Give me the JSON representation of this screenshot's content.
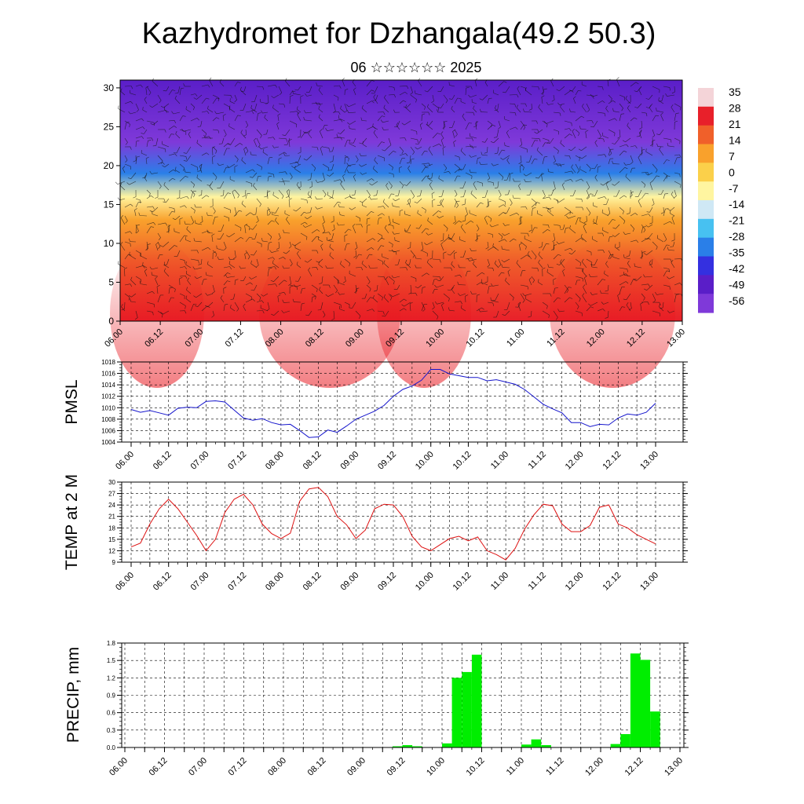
{
  "header": {
    "title": "Kazhydromet for Dzhangala(49.2 50.3)",
    "subtitle": "06 ☆☆☆☆☆☆ 2025"
  },
  "chart_data": [
    {
      "type": "heatmap",
      "name": "vertical temperature and wind cross-section",
      "x_ticks": [
        "06.00",
        "06.12",
        "07.00",
        "07.12",
        "08.00",
        "08.12",
        "09.00",
        "09.12",
        "10.00",
        "10.12",
        "11.00",
        "11.12",
        "12.00",
        "12.12",
        "13.00"
      ],
      "y_ticks": [
        "0",
        "5",
        "10",
        "15",
        "20",
        "25",
        "30"
      ],
      "ylim": [
        0,
        31
      ],
      "colorbar_labels": [
        "35",
        "28",
        "21",
        "14",
        "7",
        "0",
        "-7",
        "-14",
        "-21",
        "-28",
        "-35",
        "-42",
        "-49",
        "-56"
      ],
      "colorbar_colors": [
        "#f4d4d8",
        "#e8202a",
        "#f0602a",
        "#f9a12c",
        "#fbd04a",
        "#fff5a0",
        "#cfe8f5",
        "#47c1f1",
        "#2a7fe8",
        "#3430e0",
        "#5a1ec8",
        "#7f39d9"
      ],
      "field_bands": [
        {
          "height": 0,
          "value": 28
        },
        {
          "height": 8,
          "value": 20
        },
        {
          "height": 13,
          "value": 7
        },
        {
          "height": 16,
          "value": -10
        },
        {
          "height": 19,
          "value": -35
        },
        {
          "height": 23,
          "value": -56
        },
        {
          "height": 31,
          "value": -49
        }
      ]
    },
    {
      "type": "line",
      "ylabel": "PMSL",
      "ylim": [
        1004,
        1018
      ],
      "y_ticks": [
        "1004",
        "1006",
        "1008",
        "1010",
        "1012",
        "1014",
        "1016",
        "1018"
      ],
      "x_ticks": [
        "06.00",
        "06.12",
        "07.00",
        "07.12",
        "08.00",
        "08.12",
        "09.00",
        "09.12",
        "10.00",
        "10.12",
        "11.00",
        "11.12",
        "12.00",
        "12.12",
        "13.00"
      ],
      "x_hours": [
        0,
        3,
        6,
        9,
        12,
        15,
        18,
        21,
        24,
        27,
        30,
        33,
        36,
        39,
        42,
        45,
        48,
        51,
        54,
        57,
        60,
        63,
        66,
        69,
        72,
        75,
        78,
        81,
        84,
        87,
        90,
        93,
        96,
        99,
        102,
        105,
        108,
        111,
        114,
        117,
        120,
        123,
        126,
        129,
        132,
        135,
        138,
        141,
        144,
        147,
        150,
        153,
        156,
        159,
        162,
        165,
        168
      ],
      "values": [
        1009.7,
        1009.2,
        1009.5,
        1009.1,
        1008.7,
        1009.9,
        1010.1,
        1010.0,
        1011.1,
        1011.2,
        1011.0,
        1009.6,
        1008.2,
        1007.8,
        1008.1,
        1007.4,
        1007.0,
        1007.1,
        1006.0,
        1004.8,
        1004.9,
        1006.1,
        1005.7,
        1006.8,
        1008.0,
        1008.7,
        1009.4,
        1010.4,
        1012.0,
        1013.2,
        1013.8,
        1014.8,
        1016.7,
        1016.7,
        1015.9,
        1015.6,
        1015.3,
        1015.3,
        1014.7,
        1014.9,
        1014.5,
        1014.1,
        1013.2,
        1011.9,
        1010.6,
        1009.8,
        1009.1,
        1007.4,
        1007.4,
        1006.7,
        1007.1,
        1007.0,
        1008.2,
        1008.9,
        1008.7,
        1009.2,
        1010.8
      ],
      "color": "#1414cc"
    },
    {
      "type": "line",
      "ylabel": "TEMP at 2 M",
      "ylim": [
        9,
        30
      ],
      "y_ticks": [
        "9",
        "12",
        "15",
        "18",
        "21",
        "24",
        "27",
        "30"
      ],
      "x_ticks": [
        "06.00",
        "06.12",
        "07.00",
        "07.12",
        "08.00",
        "08.12",
        "09.00",
        "09.12",
        "10.00",
        "10.12",
        "11.00",
        "11.12",
        "12.00",
        "12.12",
        "13.00"
      ],
      "x_hours": [
        0,
        3,
        6,
        9,
        12,
        15,
        18,
        21,
        24,
        27,
        30,
        33,
        36,
        39,
        42,
        45,
        48,
        51,
        54,
        57,
        60,
        63,
        66,
        69,
        72,
        75,
        78,
        81,
        84,
        87,
        90,
        93,
        96,
        99,
        102,
        105,
        108,
        111,
        114,
        117,
        120,
        123,
        126,
        129,
        132,
        135,
        138,
        141,
        144,
        147,
        150,
        153,
        156,
        159,
        162,
        165,
        168
      ],
      "values": [
        13.0,
        14.0,
        19.0,
        23.0,
        25.5,
        23.0,
        19.5,
        16.0,
        12.0,
        15.0,
        22.0,
        25.5,
        26.8,
        24.0,
        19.0,
        16.5,
        15.2,
        16.6,
        25.0,
        28.2,
        28.6,
        26.2,
        21.0,
        18.8,
        15.2,
        17.4,
        23.0,
        24.2,
        24.0,
        21.0,
        15.8,
        13.0,
        12.0,
        13.6,
        15.2,
        15.8,
        14.6,
        15.6,
        12.0,
        11.0,
        9.6,
        12.6,
        17.6,
        21.4,
        24.2,
        23.8,
        19.0,
        17.0,
        17.0,
        18.6,
        23.4,
        24.0,
        19.0,
        18.0,
        16.2,
        15.0,
        13.8
      ],
      "color": "#dd1111"
    },
    {
      "type": "bar",
      "ylabel": "PRECIP, mm",
      "ylim": [
        0,
        1.8
      ],
      "y_ticks": [
        "0.0",
        "0.3",
        "0.6",
        "0.9",
        "1.2",
        "1.5",
        "1.8"
      ],
      "x_ticks": [
        "06.00",
        "06.12",
        "07.00",
        "07.12",
        "08.00",
        "08.12",
        "09.00",
        "09.12",
        "10.00",
        "10.12",
        "11.00",
        "11.12",
        "12.00",
        "12.12",
        "13.00"
      ],
      "bar_hours": [
        60,
        63,
        69,
        72,
        75,
        78,
        81,
        84,
        87,
        90,
        93,
        96,
        99,
        102,
        105,
        108,
        111,
        114,
        117,
        120,
        123,
        126,
        129,
        132,
        135,
        138,
        141,
        144,
        147,
        150,
        153,
        156,
        159
      ],
      "values": [
        0.0,
        0.0,
        0.0,
        0.0,
        0.0,
        0.0,
        0.02,
        0.04,
        0.02,
        0.0,
        0.0,
        0.07,
        1.2,
        1.3,
        1.6,
        0.0,
        0.0,
        0.0,
        0.0,
        0.05,
        0.14,
        0.04,
        0.0,
        0.0,
        0.0,
        0.0,
        0.0,
        0.0,
        0.06,
        0.23,
        1.62,
        1.51,
        0.62
      ],
      "color": "#00ee00"
    }
  ]
}
